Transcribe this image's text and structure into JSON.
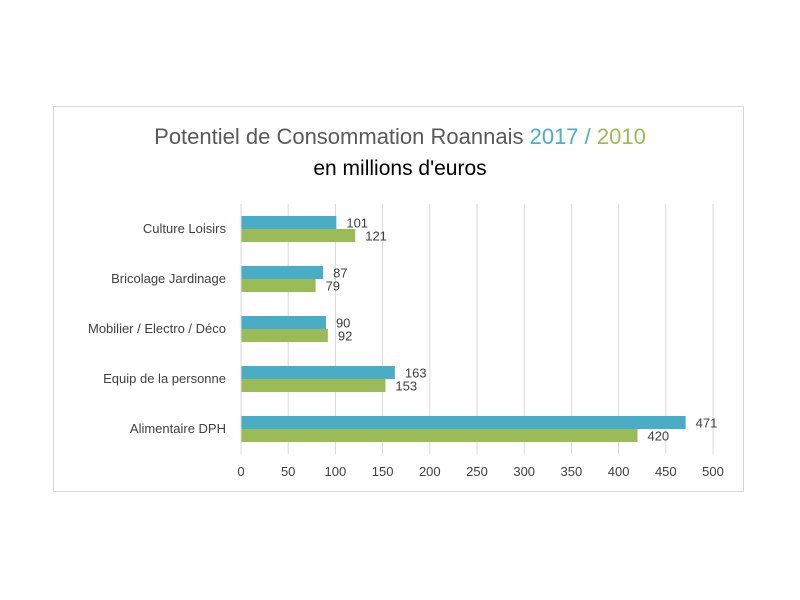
{
  "chart_data": {
    "type": "bar",
    "orientation": "horizontal",
    "title": {
      "prefix": "Potentiel de Consommation Roannais ",
      "year_a": "2017",
      "separator": " / ",
      "year_b": "2010"
    },
    "subtitle": "en millions d'euros",
    "categories": [
      "Culture Loisirs",
      "Bricolage Jardinage",
      "Mobilier / Electro / Déco",
      "Equip de la personne",
      "Alimentaire DPH"
    ],
    "series": [
      {
        "name": "2017",
        "color": "#4bacc6",
        "values": [
          101,
          87,
          90,
          163,
          471
        ]
      },
      {
        "name": "2010",
        "color": "#9bbb59",
        "values": [
          121,
          79,
          92,
          153,
          420
        ]
      }
    ],
    "xlim": [
      0,
      500
    ],
    "xticks": [
      0,
      50,
      100,
      150,
      200,
      250,
      300,
      350,
      400,
      450,
      500
    ],
    "grid": true,
    "legend": "none"
  }
}
